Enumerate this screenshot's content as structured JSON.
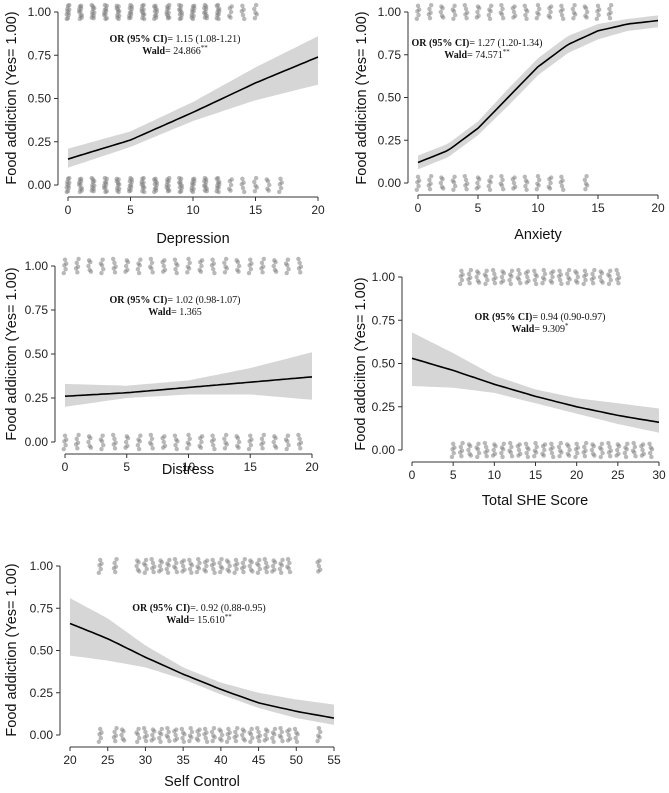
{
  "chart_data": [
    {
      "type": "scatter",
      "title": "",
      "xlabel": "Depression",
      "ylabel": "Food addiction (Yes= 1.00)",
      "xlim": [
        0,
        20
      ],
      "ylim": [
        0,
        1
      ],
      "xticks": [
        0,
        5,
        10,
        15,
        20
      ],
      "yticks": [
        0.0,
        0.25,
        0.5,
        0.75,
        1.0
      ],
      "annotation": {
        "or_label": "OR (95% CI)",
        "or_value": "= 1.15 (1.08-1.21)",
        "wald_label": "Wald",
        "wald_value": "= 24.866",
        "sig": "**"
      },
      "fit_curve": {
        "x": [
          0,
          5,
          10,
          15,
          20
        ],
        "y": [
          0.15,
          0.26,
          0.42,
          0.59,
          0.74
        ],
        "ci_lower": [
          0.1,
          0.22,
          0.37,
          0.49,
          0.58
        ],
        "ci_upper": [
          0.21,
          0.31,
          0.48,
          0.68,
          0.86
        ]
      },
      "points_y1_x": [
        0,
        0,
        1,
        1,
        2,
        2,
        3,
        3,
        4,
        4,
        5,
        5,
        6,
        6,
        7,
        7,
        8,
        8,
        9,
        9,
        10,
        10,
        11,
        11,
        12,
        12,
        13,
        14,
        15
      ],
      "points_y0_x": [
        0,
        0,
        1,
        1,
        2,
        2,
        3,
        3,
        4,
        4,
        5,
        5,
        6,
        6,
        7,
        7,
        8,
        8,
        9,
        9,
        10,
        10,
        11,
        11,
        12,
        12,
        13,
        14,
        15,
        16,
        17
      ]
    },
    {
      "type": "scatter",
      "title": "",
      "xlabel": "Anxiety",
      "ylabel": "Food addiciton (Yes= 1.00)",
      "xlim": [
        0,
        20
      ],
      "ylim": [
        0,
        1
      ],
      "xticks": [
        0,
        5,
        10,
        15,
        20
      ],
      "yticks": [
        0.0,
        0.25,
        0.5,
        0.75,
        1.0
      ],
      "annotation": {
        "or_label": "OR (95% CI)",
        "or_value": "= 1.27 (1.20-1.34)",
        "wald_label": "Wald",
        "wald_value": "= 74.571",
        "sig": "**"
      },
      "fit_curve": {
        "x": [
          0,
          2.5,
          5,
          7.5,
          10,
          12.5,
          15,
          17.5,
          20
        ],
        "y": [
          0.12,
          0.19,
          0.32,
          0.5,
          0.68,
          0.81,
          0.89,
          0.93,
          0.95
        ],
        "ci_lower": [
          0.08,
          0.15,
          0.28,
          0.45,
          0.63,
          0.76,
          0.84,
          0.89,
          0.91
        ],
        "ci_upper": [
          0.16,
          0.23,
          0.36,
          0.55,
          0.73,
          0.86,
          0.93,
          0.96,
          0.98
        ]
      },
      "points_y1_x": [
        0,
        1,
        2,
        3,
        4,
        5,
        6,
        7,
        8,
        9,
        10,
        11,
        12,
        13,
        14,
        15,
        16
      ],
      "points_y0_x": [
        0,
        1,
        2,
        3,
        4,
        5,
        6,
        7,
        8,
        9,
        10,
        11,
        12,
        14
      ]
    },
    {
      "type": "scatter",
      "title": "",
      "xlabel": "Distress",
      "ylabel": "Food addiciton (Yes= 1.00)",
      "xlim": [
        0,
        20
      ],
      "ylim": [
        0,
        1
      ],
      "xticks": [
        0,
        5,
        10,
        15,
        20
      ],
      "yticks": [
        0.0,
        0.25,
        0.5,
        0.75,
        1.0
      ],
      "annotation": {
        "or_label": "OR (95% CI)",
        "or_value": "= 1.02 (0.98-1.07)",
        "wald_label": "Wald",
        "wald_value": "= 1.365",
        "sig": ""
      },
      "fit_curve": {
        "x": [
          0,
          5,
          10,
          15,
          20
        ],
        "y": [
          0.26,
          0.28,
          0.31,
          0.34,
          0.37
        ],
        "ci_lower": [
          0.2,
          0.25,
          0.27,
          0.27,
          0.24
        ],
        "ci_upper": [
          0.33,
          0.32,
          0.35,
          0.42,
          0.51
        ]
      },
      "points_y1_x": [
        0,
        1,
        2,
        3,
        4,
        5,
        6,
        7,
        8,
        9,
        10,
        11,
        12,
        13,
        14,
        15,
        16,
        17,
        18,
        19
      ],
      "points_y0_x": [
        0,
        1,
        2,
        3,
        4,
        5,
        6,
        7,
        8,
        9,
        10,
        11,
        12,
        13,
        14,
        15,
        16,
        17,
        18,
        19
      ]
    },
    {
      "type": "scatter",
      "title": "",
      "xlabel": "Total SHE Score",
      "ylabel": "Food addciiton (Yes= 1.00)",
      "xlim": [
        0,
        30
      ],
      "ylim": [
        0,
        1
      ],
      "xticks": [
        0,
        5,
        10,
        15,
        20,
        25,
        30
      ],
      "yticks": [
        0.0,
        0.25,
        0.5,
        0.75,
        1.0
      ],
      "annotation": {
        "or_label": "OR (95% CI)",
        "or_value": "= 0.94 (0.90-0.97)",
        "wald_label": "Wald",
        "wald_value": "= 9.309",
        "sig": "*"
      },
      "fit_curve": {
        "x": [
          0,
          5,
          10,
          15,
          20,
          25,
          30
        ],
        "y": [
          0.53,
          0.46,
          0.38,
          0.31,
          0.25,
          0.2,
          0.16
        ],
        "ci_lower": [
          0.37,
          0.36,
          0.33,
          0.27,
          0.21,
          0.15,
          0.1
        ],
        "ci_upper": [
          0.68,
          0.56,
          0.43,
          0.35,
          0.3,
          0.27,
          0.24
        ]
      },
      "points_y1_x": [
        6,
        7,
        8,
        9,
        10,
        11,
        12,
        13,
        14,
        15,
        16,
        17,
        18,
        19,
        20,
        21,
        22,
        23,
        24,
        25
      ],
      "points_y0_x": [
        5,
        6,
        7,
        8,
        9,
        10,
        11,
        12,
        13,
        14,
        15,
        16,
        17,
        18,
        19,
        20,
        21,
        22,
        23,
        24,
        25,
        26,
        27,
        28,
        29
      ]
    },
    {
      "type": "scatter",
      "title": "",
      "xlabel": "Self Control",
      "ylabel": "Food addiction (Yes= 1.00)",
      "xlim": [
        20,
        55
      ],
      "ylim": [
        0,
        1
      ],
      "xticks": [
        20,
        25,
        30,
        35,
        40,
        45,
        50,
        55
      ],
      "yticks": [
        0.0,
        0.25,
        0.5,
        0.75,
        1.0
      ],
      "annotation": {
        "or_label": "OR (95% CI)",
        "or_value": "=. 0.92 (0.88-0.95)",
        "wald_label": "Wald",
        "wald_value": "= 15.610",
        "sig": "**"
      },
      "fit_curve": {
        "x": [
          20,
          25,
          30,
          35,
          40,
          45,
          50,
          55
        ],
        "y": [
          0.66,
          0.57,
          0.46,
          0.36,
          0.27,
          0.19,
          0.14,
          0.1
        ],
        "ci_lower": [
          0.47,
          0.44,
          0.4,
          0.33,
          0.24,
          0.16,
          0.1,
          0.06
        ],
        "ci_upper": [
          0.81,
          0.69,
          0.53,
          0.4,
          0.31,
          0.25,
          0.21,
          0.18
        ]
      },
      "points_y1_x": [
        24,
        26,
        29,
        30,
        31,
        32,
        33,
        34,
        35,
        36,
        37,
        38,
        39,
        40,
        41,
        42,
        43,
        44,
        45,
        46,
        47,
        48,
        49,
        53
      ],
      "points_y0_x": [
        24,
        26,
        27,
        29,
        30,
        31,
        32,
        33,
        34,
        35,
        36,
        37,
        38,
        39,
        40,
        41,
        42,
        43,
        44,
        45,
        46,
        47,
        48,
        49,
        50,
        53
      ]
    }
  ]
}
